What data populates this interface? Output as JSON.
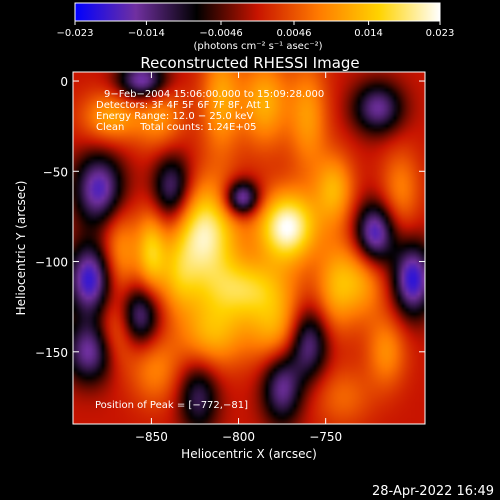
{
  "chart_data": {
    "type": "heatmap",
    "title": "Reconstructed RHESSI Image",
    "xlabel": "Heliocentric X (arcsec)",
    "ylabel": "Heliocentric Y (arcsec)",
    "xlim": [
      -895,
      -693
    ],
    "ylim": [
      -190,
      5
    ],
    "x_ticks": [
      -850,
      -800,
      -750
    ],
    "x_tick_labels": [
      "−850",
      "−800",
      "−750"
    ],
    "y_ticks": [
      0,
      -50,
      -100,
      -150
    ],
    "y_tick_labels": [
      "0",
      "−50",
      "−100",
      "−150"
    ],
    "colorbar": {
      "range": [
        -0.023,
        0.023
      ],
      "ticks": [
        -0.023,
        -0.014,
        -0.0046,
        0.0046,
        0.014,
        0.023
      ],
      "tick_labels": [
        "−0.023",
        "−0.014",
        "−0.0046",
        "0.0046",
        "0.014",
        "0.023"
      ],
      "unit_label": "(photons cm⁻² s⁻¹ asec⁻²)",
      "colormap": [
        "#0000ff",
        "#7030a0",
        "#000000",
        "#c81400",
        "#ff7a00",
        "#ffd300",
        "#ffffff"
      ]
    },
    "annotations": [
      "9−Feb−2004 15:06:00.000 to 15:09:28.000",
      "Detectors: 3F 4F 5F 6F 7F 8F, Att 1",
      "Energy Range: 12.0 − 25.0 keV",
      "Clean     Total counts: 1.24E+05"
    ],
    "peak_label": "Position of Peak = [−772,−81]",
    "peak": {
      "x": -772,
      "y": -81
    },
    "sources": [
      {
        "x": -820,
        "y": -85,
        "value": 0.021,
        "sx": 14,
        "sy": 20
      },
      {
        "x": -772,
        "y": -81,
        "value": 0.023,
        "sx": 12,
        "sy": 14
      },
      {
        "x": -795,
        "y": -115,
        "value": 0.014,
        "sx": 18,
        "sy": 12
      },
      {
        "x": -815,
        "y": -140,
        "value": 0.012,
        "sx": 14,
        "sy": 14
      },
      {
        "x": -778,
        "y": -138,
        "value": 0.011,
        "sx": 12,
        "sy": 14
      },
      {
        "x": -810,
        "y": -10,
        "value": 0.011,
        "sx": 8,
        "sy": 22
      },
      {
        "x": -785,
        "y": -12,
        "value": 0.012,
        "sx": 10,
        "sy": 18
      },
      {
        "x": -760,
        "y": -20,
        "value": 0.01,
        "sx": 8,
        "sy": 22
      },
      {
        "x": -745,
        "y": -60,
        "value": 0.012,
        "sx": 8,
        "sy": 14
      },
      {
        "x": -873,
        "y": -20,
        "value": 0.011,
        "sx": 12,
        "sy": 10
      },
      {
        "x": -845,
        "y": -20,
        "value": 0.009,
        "sx": 10,
        "sy": 14
      },
      {
        "x": -868,
        "y": -95,
        "value": 0.01,
        "sx": 8,
        "sy": 18
      },
      {
        "x": -850,
        "y": -95,
        "value": 0.013,
        "sx": 6,
        "sy": 16
      },
      {
        "x": -870,
        "y": -140,
        "value": 0.009,
        "sx": 8,
        "sy": 14
      },
      {
        "x": -848,
        "y": -160,
        "value": 0.008,
        "sx": 10,
        "sy": 14
      },
      {
        "x": -835,
        "y": -110,
        "value": 0.008,
        "sx": 8,
        "sy": 14
      },
      {
        "x": -730,
        "y": -110,
        "value": 0.011,
        "sx": 10,
        "sy": 16
      },
      {
        "x": -745,
        "y": -115,
        "value": 0.009,
        "sx": 8,
        "sy": 18
      },
      {
        "x": -715,
        "y": -150,
        "value": 0.009,
        "sx": 8,
        "sy": 14
      },
      {
        "x": -707,
        "y": -60,
        "value": 0.008,
        "sx": 8,
        "sy": 16
      },
      {
        "x": -740,
        "y": -175,
        "value": 0.006,
        "sx": 12,
        "sy": 12
      },
      {
        "x": -880,
        "y": -60,
        "value": -0.018,
        "sx": 10,
        "sy": 14
      },
      {
        "x": -885,
        "y": -110,
        "value": -0.02,
        "sx": 9,
        "sy": 14
      },
      {
        "x": -885,
        "y": -150,
        "value": -0.016,
        "sx": 10,
        "sy": 12
      },
      {
        "x": -855,
        "y": 0,
        "value": -0.018,
        "sx": 10,
        "sy": 8
      },
      {
        "x": -857,
        "y": -130,
        "value": -0.016,
        "sx": 8,
        "sy": 12
      },
      {
        "x": -838,
        "y": -60,
        "value": -0.016,
        "sx": 8,
        "sy": 14
      },
      {
        "x": -823,
        "y": -175,
        "value": -0.012,
        "sx": 8,
        "sy": 14
      },
      {
        "x": -775,
        "y": -170,
        "value": -0.015,
        "sx": 8,
        "sy": 14
      },
      {
        "x": -798,
        "y": -65,
        "value": -0.02,
        "sx": 7,
        "sy": 7
      },
      {
        "x": -720,
        "y": -15,
        "value": -0.015,
        "sx": 10,
        "sy": 10
      },
      {
        "x": -722,
        "y": -85,
        "value": -0.02,
        "sx": 8,
        "sy": 12
      },
      {
        "x": -700,
        "y": -110,
        "value": -0.02,
        "sx": 8,
        "sy": 14
      },
      {
        "x": -760,
        "y": -145,
        "value": -0.016,
        "sx": 8,
        "sy": 14
      }
    ]
  },
  "footer": {
    "timestamp": "28-Apr-2022 16:49"
  }
}
